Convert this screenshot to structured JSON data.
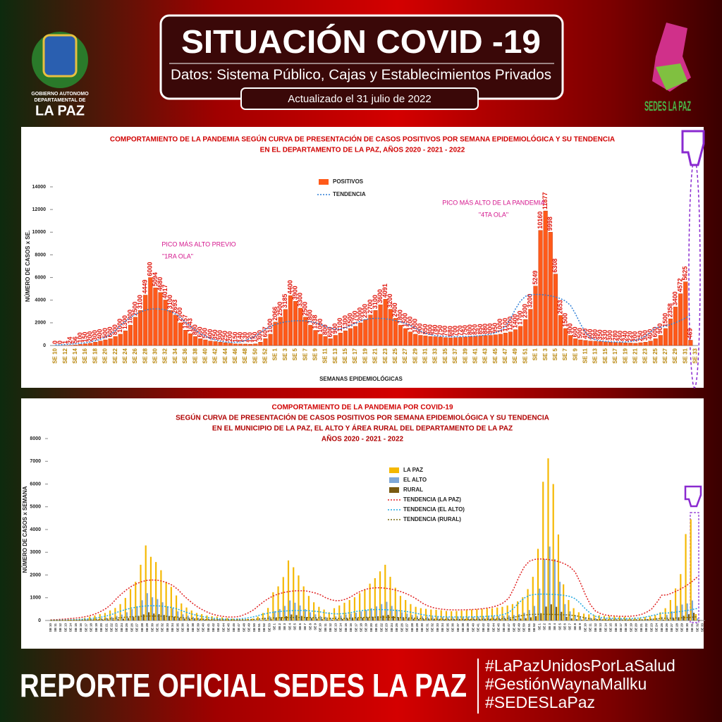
{
  "header": {
    "title": "SITUACIÓN COVID -19",
    "subtitle": "Datos: Sistema Público, Cajas y Establecimientos Privados",
    "updated": "Actualizado el  31  julio  de 2022",
    "logo_left": [
      "GOBIERNO AUTONOMO",
      "DEPARTAMENTAL DE",
      "LA PAZ"
    ],
    "logo_right": "SEDES LA PAZ"
  },
  "chart_data": [
    {
      "type": "bar",
      "title": [
        "COMPORTAMIENTO DE LA PANDEMIA SEGÚN CURVA DE PRESENTACIÓN DE CASOS POSITIVOS POR SEMANA EPIDEMIOLÓGICA Y SU TENDENCIA",
        "EN EL DEPARTAMENTO DE LA PAZ, AÑOS 2020 - 2021 - 2022"
      ],
      "y_label": "NÚMERO DE CASOS x SE.",
      "x_label": "SEMANAS EPIDEMIOLÓGICAS",
      "annotations": [
        "PICO MÁS ALTO PREVIO",
        "\"1RA OLA\"",
        "PICO MÁS ALTO DE LA PANDEMIA",
        "\"4TA OLA\""
      ],
      "ylim": [
        0,
        14000
      ],
      "yticks": [
        0,
        2000,
        4000,
        6000,
        8000,
        10000,
        12000,
        14000
      ],
      "show_values": true,
      "categories": [
        "SE 10",
        null,
        "SE 12",
        null,
        "SE 14",
        null,
        "SE 16",
        null,
        "SE 18",
        null,
        "SE 20",
        null,
        "SE 22",
        null,
        "SE 24",
        null,
        "SE 26",
        null,
        "SE 28",
        null,
        "SE 30",
        null,
        "SE 32",
        null,
        "SE 34",
        null,
        "SE 36",
        null,
        "SE 38",
        null,
        "SE 40",
        null,
        "SE 42",
        null,
        "SE 44",
        null,
        "SE 46",
        null,
        "SE 48",
        null,
        "SE 50",
        null,
        "SE 52",
        null,
        "SE 1",
        null,
        "SE 3",
        null,
        "SE 5",
        null,
        "SE 7",
        null,
        "SE 9",
        null,
        "SE 11",
        null,
        "SE 13",
        null,
        "SE 15",
        null,
        "SE 17",
        null,
        "SE 19",
        null,
        "SE 21",
        null,
        "SE 23",
        null,
        "SE 25",
        null,
        "SE 27",
        null,
        "SE 29",
        null,
        "SE 31",
        null,
        "SE 33",
        null,
        "SE 35",
        null,
        "SE 37",
        null,
        "SE 39",
        null,
        "SE 41",
        null,
        "SE 43",
        null,
        "SE 45",
        null,
        "SE 47",
        null,
        "SE 49",
        null,
        "SE 51",
        null,
        "SE 1",
        null,
        "SE 3",
        null,
        "SE 5",
        null,
        "SE 7",
        null,
        "SE 9",
        null,
        "SE 11",
        null,
        "SE 13",
        null,
        "SE 15",
        null,
        "SE 17",
        null,
        "SE 19",
        null,
        "SE 21",
        null,
        "SE 23",
        null,
        "SE 25",
        null,
        "SE 27",
        null,
        "SE 29",
        null,
        "SE 31",
        null,
        "SE 33"
      ],
      "series": [
        {
          "name": "POSITIVOS",
          "color": "#ff5a1a",
          "values": [
            0,
            0,
            1,
            24,
            56,
            100,
            150,
            200,
            300,
            400,
            500,
            600,
            800,
            1000,
            1300,
            1800,
            2500,
            3100,
            4449,
            6000,
            5094,
            4680,
            4017,
            3100,
            2693,
            2000,
            1357,
            1043,
            800,
            600,
            500,
            400,
            350,
            300,
            250,
            200,
            150,
            140,
            130,
            120,
            150,
            300,
            607,
            1000,
            2066,
            2500,
            3185,
            4400,
            3900,
            3300,
            2500,
            1800,
            1338,
            1000,
            800,
            600,
            900,
            1100,
            1300,
            1500,
            1700,
            2000,
            2300,
            2700,
            3100,
            3600,
            4091,
            3200,
            2400,
            1800,
            1500,
            1200,
            1000,
            900,
            850,
            800,
            780,
            750,
            700,
            680,
            700,
            720,
            750,
            800,
            820,
            850,
            880,
            900,
            950,
            1000,
            1100,
            1200,
            1400,
            1700,
            2300,
            3200,
            5249,
            10160,
            11877,
            9998,
            6308,
            2653,
            1500,
            900,
            600,
            500,
            450,
            400,
            380,
            350,
            330,
            300,
            280,
            260,
            240,
            220,
            200,
            250,
            300,
            400,
            600,
            900,
            1500,
            2358,
            3400,
            4572,
            5625,
            469,
            null
          ]
        }
      ],
      "trends": [
        {
          "name": "TENDENCIA",
          "color": "#2f7fd6"
        }
      ]
    },
    {
      "type": "bar",
      "title": [
        "COMPORTAMIENTO DE LA PANDEMIA POR COVID-19",
        "SEGÚN CURVA DE PRESENTACIÓN DE CASOS POSITIVOS POR SEMANA EPIDEMIOLÓGICA Y SU TENDENCIA",
        "EN EL  MUNICIPIO DE LA PAZ, EL ALTO Y ÁREA RURAL DEL DEPARTAMENTO DE LA PAZ",
        "AÑOS 2020 - 2021 - 2022"
      ],
      "y_label": "NÚMERO DE CASOS x SEMANA",
      "ylim": [
        0,
        8000
      ],
      "yticks": [
        0,
        1000,
        2000,
        3000,
        4000,
        5000,
        6000,
        7000,
        8000
      ],
      "show_values": false,
      "categories": [
        "SE 10",
        "SE 11",
        "SE 12",
        "SE 13",
        "SE 14",
        "SE 15",
        "SE 16",
        "SE 17",
        "SE 18",
        "SE 19",
        "SE 20",
        "SE 21",
        "SE 22",
        "SE 23",
        "SE 24",
        "SE 25",
        "SE 26",
        "SE 27",
        "SE 28",
        "SE 29",
        "SE 30",
        "SE 31",
        "SE 32",
        "SE 33",
        "SE 34",
        "SE 35",
        "SE 36",
        "SE 37",
        "SE 38",
        "SE 39",
        "SE 40",
        "SE 41",
        "SE 42",
        "SE 43",
        "SE 44",
        "SE 45",
        "SE 46",
        "SE 47",
        "SE 48",
        "SE 49",
        "SE 50",
        "SE 51",
        "SE 52",
        "SE 53",
        "SE 1",
        "SE 2",
        "SE 3",
        "SE 4",
        "SE 5",
        "SE 6",
        "SE 7",
        "SE 8",
        "SE 9",
        "SE 10",
        "SE 11",
        "SE 12",
        "SE 13",
        "SE 14",
        "SE 15",
        "SE 16",
        "SE 17",
        "SE 18",
        "SE 19",
        "SE 20",
        "SE 21",
        "SE 22",
        "SE 23",
        "SE 24",
        "SE 25",
        "SE 26",
        "SE 27",
        "SE 28",
        "SE 29",
        "SE 30",
        "SE 31",
        "SE 32",
        "SE 33",
        "SE 34",
        "SE 35",
        "SE 36",
        "SE 37",
        "SE 38",
        "SE 39",
        "SE 40",
        "SE 41",
        "SE 42",
        "SE 43",
        "SE 44",
        "SE 45",
        "SE 46",
        "SE 47",
        "SE 48",
        "SE 49",
        "SE 50",
        "SE 51",
        "SE 52",
        "SE 1",
        "SE 2",
        "SE 3",
        "SE 4",
        "SE 5",
        "SE 6",
        "SE 7",
        "SE 8",
        "SE 9",
        "SE 10",
        "SE 11",
        "SE 12",
        "SE 13",
        "SE 14",
        "SE 15",
        "SE 16",
        "SE 17",
        "SE 18",
        "SE 19",
        "SE 20",
        "SE 21",
        "SE 22",
        "SE 23",
        "SE 24",
        "SE 25",
        "SE 26",
        "SE 27",
        "SE 28",
        "SE 29",
        "SE 30",
        "SE 31",
        "SE 32",
        "SE 33"
      ],
      "series": [
        {
          "name": "LA PAZ",
          "color": "#f5b800",
          "values": [
            0,
            0,
            0,
            10,
            30,
            50,
            80,
            110,
            170,
            220,
            280,
            330,
            440,
            550,
            720,
            990,
            1380,
            1700,
            2450,
            3300,
            2800,
            2570,
            2210,
            1700,
            1480,
            1100,
            750,
            570,
            440,
            330,
            280,
            220,
            190,
            170,
            140,
            110,
            80,
            80,
            70,
            70,
            80,
            170,
            330,
            550,
            1240,
            1500,
            1910,
            2640,
            2340,
            1980,
            1500,
            1080,
            800,
            600,
            480,
            360,
            540,
            660,
            780,
            900,
            1020,
            1200,
            1380,
            1620,
            1860,
            2160,
            2450,
            1920,
            1440,
            1080,
            900,
            720,
            600,
            540,
            510,
            480,
            470,
            450,
            420,
            410,
            420,
            430,
            450,
            480,
            490,
            510,
            530,
            540,
            570,
            600,
            660,
            720,
            840,
            1020,
            1380,
            1920,
            3150,
            6100,
            7130,
            6000,
            3780,
            1590,
            900,
            540,
            360,
            300,
            270,
            240,
            230,
            210,
            200,
            180,
            170,
            160,
            140,
            130,
            120,
            150,
            180,
            240,
            360,
            540,
            900,
            1410,
            2040,
            3800,
            4450,
            280,
            null
          ]
        },
        {
          "name": "EL ALTO",
          "color": "#7fa8d8",
          "values": [
            0,
            0,
            0,
            5,
            10,
            20,
            30,
            40,
            60,
            80,
            100,
            120,
            160,
            200,
            260,
            360,
            500,
            620,
            890,
            1200,
            1020,
            940,
            800,
            620,
            540,
            400,
            270,
            210,
            160,
            120,
            100,
            80,
            70,
            60,
            50,
            40,
            30,
            30,
            30,
            20,
            30,
            60,
            120,
            200,
            410,
            500,
            640,
            880,
            780,
            660,
            500,
            360,
            270,
            200,
            160,
            120,
            180,
            220,
            260,
            300,
            340,
            400,
            460,
            540,
            620,
            720,
            820,
            640,
            480,
            360,
            300,
            240,
            200,
            180,
            170,
            160,
            160,
            150,
            140,
            140,
            140,
            140,
            150,
            160,
            160,
            170,
            180,
            180,
            190,
            200,
            220,
            240,
            280,
            340,
            460,
            640,
            1400,
            2700,
            3250,
            2700,
            1700,
            720,
            400,
            240,
            160,
            140,
            120,
            110,
            100,
            90,
            90,
            80,
            80,
            70,
            60,
            60,
            50,
            70,
            80,
            110,
            160,
            240,
            400,
            640,
            700,
            750,
            880,
            90,
            null
          ]
        },
        {
          "name": "RURAL",
          "color": "#7a5a10",
          "values": [
            0,
            0,
            0,
            1,
            3,
            6,
            9,
            12,
            18,
            24,
            30,
            36,
            48,
            60,
            78,
            108,
            150,
            186,
            267,
            360,
            306,
            281,
            241,
            186,
            162,
            120,
            81,
            63,
            48,
            36,
            30,
            24,
            21,
            18,
            15,
            12,
            9,
            8,
            8,
            7,
            9,
            18,
            36,
            60,
            124,
            150,
            191,
            264,
            234,
            198,
            150,
            108,
            80,
            60,
            48,
            36,
            54,
            66,
            78,
            90,
            102,
            120,
            138,
            162,
            186,
            216,
            245,
            192,
            144,
            108,
            90,
            72,
            60,
            54,
            51,
            48,
            47,
            45,
            42,
            41,
            42,
            43,
            45,
            48,
            49,
            51,
            53,
            54,
            57,
            60,
            66,
            72,
            84,
            102,
            138,
            192,
            320,
            610,
            710,
            600,
            380,
            160,
            90,
            54,
            36,
            30,
            27,
            24,
            23,
            21,
            20,
            18,
            17,
            16,
            14,
            13,
            12,
            15,
            18,
            24,
            36,
            54,
            90,
            141,
            204,
            274,
            338,
            28,
            null
          ]
        }
      ],
      "trends": [
        {
          "name": "TENDENCIA (LA PAZ)",
          "color": "#e02020"
        },
        {
          "name": "TENDENCIA (EL ALTO)",
          "color": "#1fa8e0"
        },
        {
          "name": "TENDENCIA (RURAL)",
          "color": "#7a6a10"
        }
      ]
    }
  ],
  "footer": {
    "title": "REPORTE OFICIAL SEDES LA PAZ",
    "hashtags": [
      "#LaPazUnidosPorLaSalud",
      "#GestiónWaynaMallku",
      "#SEDESLaPaz"
    ]
  }
}
